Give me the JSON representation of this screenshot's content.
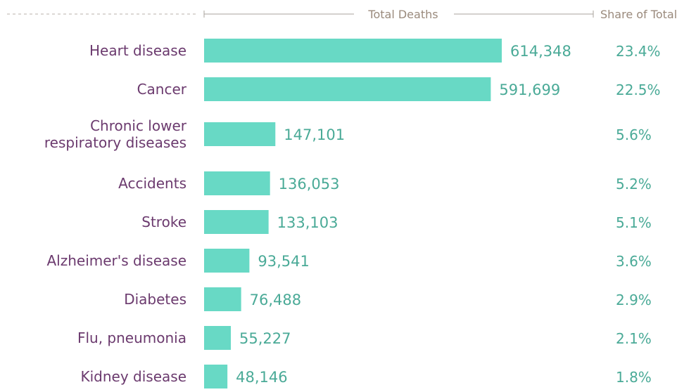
{
  "chart_data": {
    "type": "bar",
    "orientation": "horizontal",
    "column_headers": {
      "values": "Total Deaths",
      "share": "Share of Total"
    },
    "categories": [
      "Heart disease",
      "Cancer",
      "Chronic lower respiratory diseases",
      "Accidents",
      "Stroke",
      "Alzheimer's disease",
      "Diabetes",
      "Flu, pneumonia",
      "Kidney disease"
    ],
    "category_display_lines": [
      [
        "Heart disease"
      ],
      [
        "Cancer"
      ],
      [
        "Chronic lower",
        "respiratory diseases"
      ],
      [
        "Accidents"
      ],
      [
        "Stroke"
      ],
      [
        "Alzheimer's disease"
      ],
      [
        "Diabetes"
      ],
      [
        "Flu, pneumonia"
      ],
      [
        "Kidney disease"
      ]
    ],
    "values": [
      614348,
      591699,
      147101,
      136053,
      133103,
      93541,
      76488,
      55227,
      48146
    ],
    "value_labels": [
      "614,348",
      "591,699",
      "147,101",
      "136,053",
      "133,103",
      "93,541",
      "76,488",
      "55,227",
      "48,146"
    ],
    "share_labels": [
      "23.4%",
      "22.5%",
      "5.6%",
      "5.2%",
      "5.1%",
      "3.6%",
      "2.9%",
      "2.1%",
      "1.8%"
    ],
    "xlim": [
      0,
      614348
    ],
    "grid": false,
    "legend": "none",
    "colors": {
      "bar": "#68d9c5",
      "category_text": "#6b3a6e",
      "value_text": "#4aaa97",
      "header_text": "#9a8a7c",
      "rule": "#a9a39c"
    }
  }
}
